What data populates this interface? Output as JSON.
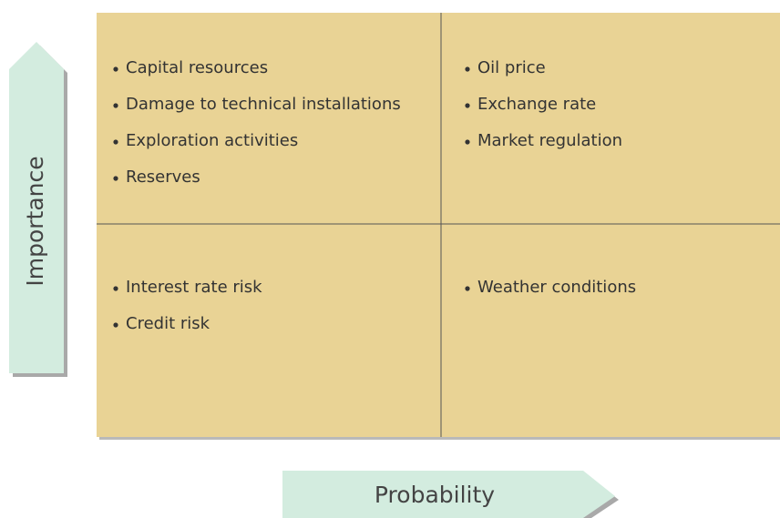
{
  "quadrants": [
    {
      "items": [
        "Capital resources",
        "Damage to technical installations",
        "Exploration activities",
        "Reserves"
      ]
    },
    {
      "items": [
        "Oil price",
        "Exchange rate",
        "Market regulation"
      ]
    },
    {
      "items": [
        "Interest rate risk",
        "Credit risk"
      ]
    },
    {
      "items": [
        "Weather conditions"
      ]
    }
  ],
  "axes": {
    "y": "Importance",
    "x": "Probability"
  }
}
